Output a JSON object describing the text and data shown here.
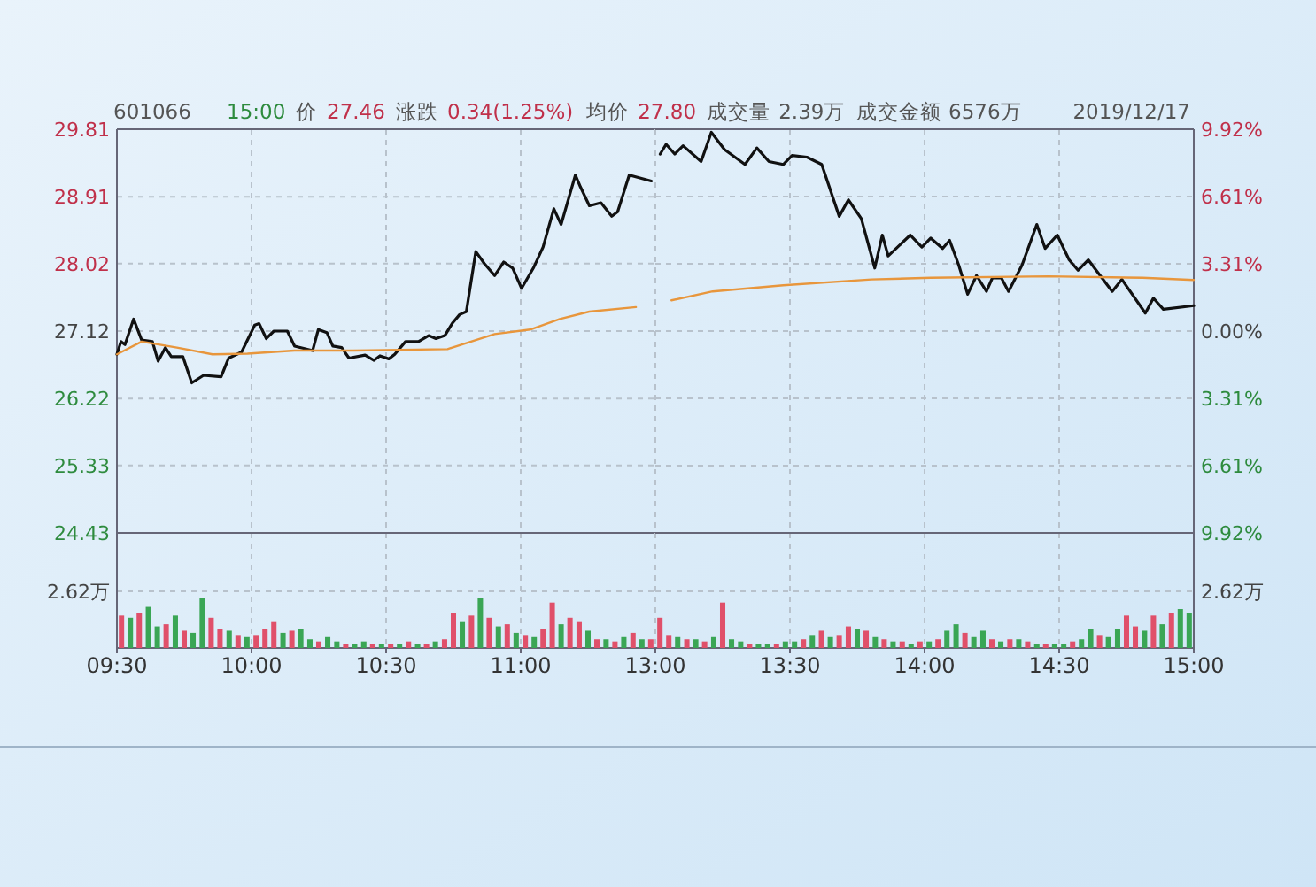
{
  "chart_data": [
    {
      "type": "line",
      "title": "601066",
      "annotations": [
        "15:00",
        "价",
        "27.46",
        "涨跌",
        "0.34(1.25%)",
        "均价",
        "27.80",
        "成交量",
        "2.39万",
        "成交金额",
        "6576万",
        "2019/12/17"
      ],
      "series": [
        {
          "color": "#111111",
          "x": [
            9.5,
            9.515,
            9.53,
            9.562,
            9.592,
            9.632,
            9.653,
            9.68,
            9.702,
            9.745,
            9.778,
            9.822,
            9.887,
            9.915,
            9.963,
            10.012,
            10.028,
            10.055,
            10.083,
            10.133,
            10.16,
            10.227,
            10.248,
            10.28,
            10.302,
            10.335,
            10.362,
            10.422,
            10.455,
            10.477,
            10.51,
            10.532,
            10.572,
            10.62,
            10.658,
            10.685,
            10.718,
            10.747,
            10.773,
            10.798,
            10.833,
            10.865,
            10.903,
            10.937,
            10.97,
            11.003,
            11.047,
            11.083,
            11.123,
            11.15,
            11.203,
            11.222,
            11.255,
            11.298,
            11.338,
            11.36,
            11.403,
            11.485
          ],
          "values": [
            26.81,
            26.98,
            26.94,
            27.28,
            27.0,
            26.98,
            26.72,
            26.9,
            26.78,
            26.78,
            26.43,
            26.53,
            26.51,
            26.76,
            26.84,
            27.2,
            27.22,
            27.02,
            27.12,
            27.12,
            26.92,
            26.86,
            27.14,
            27.1,
            26.92,
            26.9,
            26.76,
            26.8,
            26.73,
            26.79,
            26.75,
            26.81,
            26.98,
            26.98,
            27.06,
            27.02,
            27.06,
            27.23,
            27.34,
            27.38,
            28.18,
            28.02,
            27.86,
            28.04,
            27.96,
            27.69,
            27.96,
            28.24,
            28.75,
            28.54,
            29.2,
            29.04,
            28.79,
            28.83,
            28.65,
            28.71,
            29.2,
            29.12
          ]
        },
        {
          "color": "#e8963c",
          "x": [
            9.5,
            9.592,
            9.723,
            9.855,
            9.985,
            10.16,
            10.378,
            10.728,
            10.903,
            11.035,
            11.145,
            11.255,
            11.428
          ],
          "values": [
            26.81,
            26.98,
            26.9,
            26.81,
            26.82,
            26.86,
            26.86,
            26.88,
            27.08,
            27.14,
            27.28,
            27.38,
            27.44
          ]
        }
      ],
      "xlim": [
        9.5,
        11.5
      ],
      "xticks": [
        9.5,
        10,
        10.5,
        11,
        11.5
      ],
      "ylim": [
        24.43,
        29.81
      ],
      "yticks": [
        24.43,
        25.33,
        26.22,
        27.12,
        28.02,
        28.91,
        29.81
      ],
      "grid": true,
      "tick_labels": "y",
      "line_style": "solid"
    },
    {
      "type": "line",
      "series": [
        {
          "color": "#111111",
          "x": [
            13.018,
            13.04,
            13.072,
            13.103,
            13.17,
            13.208,
            13.257,
            13.333,
            13.377,
            13.422,
            13.475,
            13.508,
            13.563,
            13.618,
            13.683,
            13.717,
            13.765,
            13.815,
            13.843,
            13.865,
            13.947,
            13.99,
            14.023,
            14.067,
            14.093,
            14.127,
            14.16,
            14.193,
            14.23,
            14.252,
            14.285,
            14.312,
            14.362,
            14.417,
            14.448,
            14.493,
            14.537,
            14.57,
            14.608,
            14.697,
            14.733,
            14.82,
            14.85,
            14.887,
            15
          ],
          "axis": "y2",
          "values": [
            8.7,
            9.18,
            8.7,
            9.11,
            8.33,
            9.77,
            8.92,
            8.19,
            9.0,
            8.33,
            8.19,
            8.63,
            8.55,
            8.19,
            5.64,
            6.45,
            5.53,
            3.1,
            4.72,
            3.69,
            4.72,
            4.13,
            4.57,
            4.06,
            4.46,
            3.24,
            1.81,
            2.73,
            1.95,
            2.62,
            2.62,
            1.95,
            3.24,
            5.24,
            4.06,
            4.72,
            3.5,
            2.99,
            3.5,
            1.95,
            2.54,
            0.88,
            1.62,
            1.07,
            1.25
          ]
        },
        {
          "color": "#e8963c",
          "x": [
            13.06,
            13.213,
            13.475,
            13.803,
            14.023,
            14.46,
            14.81,
            15
          ],
          "axis": "y2",
          "values": [
            1.51,
            1.95,
            2.25,
            2.54,
            2.62,
            2.69,
            2.62,
            2.51
          ]
        }
      ],
      "xlim": [
        13,
        15
      ],
      "xticks": [
        13,
        13.5,
        14,
        14.5,
        15
      ],
      "y2lim": [
        -9.92,
        9.92
      ],
      "y2ticks": [
        {
          "value": -9.92,
          "label": "9.92%"
        },
        {
          "value": -6.61,
          "label": "6.61%"
        },
        {
          "value": -3.31,
          "label": "3.31%"
        },
        {
          "value": 0,
          "label": "0.00%"
        },
        {
          "value": 3.31,
          "label": "3.31%"
        },
        {
          "value": 6.61,
          "label": "6.61%"
        },
        {
          "value": 9.92,
          "label": "9.92%"
        }
      ],
      "grid": true,
      "tick_labels": "y",
      "line_style": "solid"
    },
    {
      "type": "bar",
      "x": [
        9.517,
        9.55,
        9.583,
        9.617,
        9.65,
        9.683,
        9.717,
        9.75,
        9.783,
        9.817,
        9.85,
        9.883,
        9.917,
        9.95,
        9.983,
        10.017,
        10.05,
        10.083,
        10.117,
        10.15,
        10.183,
        10.217,
        10.25,
        10.283,
        10.317,
        10.35,
        10.383,
        10.417,
        10.45,
        10.483,
        10.517,
        10.55,
        10.583,
        10.617,
        10.65,
        10.683,
        10.717,
        10.75,
        10.783,
        10.817,
        10.85,
        10.883,
        10.917,
        10.95,
        10.983,
        11.017,
        11.05,
        11.083,
        11.117,
        11.15,
        11.183,
        11.217,
        11.25,
        11.283,
        11.317,
        11.35,
        11.383,
        11.417,
        11.45,
        11.483
      ],
      "values": [
        1.5,
        1.4,
        1.6,
        1.9,
        1.0,
        1.1,
        1.5,
        0.8,
        0.7,
        2.3,
        1.4,
        0.9,
        0.8,
        0.6,
        0.5,
        0.6,
        0.9,
        1.2,
        0.7,
        0.8,
        0.9,
        0.4,
        0.3,
        0.5,
        0.3,
        0.2,
        0.2,
        0.3,
        0.2,
        0.2,
        0.2,
        0.2,
        0.3,
        0.2,
        0.2,
        0.3,
        0.4,
        1.6,
        1.2,
        1.5,
        2.3,
        1.4,
        1.0,
        1.1,
        0.7,
        0.6,
        0.5,
        0.9,
        2.1,
        1.1,
        1.4,
        1.2,
        0.8,
        0.4,
        0.4,
        0.3,
        0.5,
        0.7,
        0.4,
        0.4
      ],
      "colors": [
        "#e0506a",
        "#3aa655",
        "#e0506a",
        "#3aa655",
        "#3aa655",
        "#e0506a",
        "#3aa655",
        "#e0506a",
        "#3aa655",
        "#3aa655",
        "#e0506a",
        "#e0506a",
        "#3aa655",
        "#e0506a",
        "#3aa655",
        "#e0506a",
        "#e0506a",
        "#e0506a",
        "#3aa655",
        "#e0506a",
        "#3aa655",
        "#3aa655",
        "#e0506a",
        "#3aa655",
        "#3aa655",
        "#e0506a",
        "#3aa655",
        "#3aa655",
        "#e0506a",
        "#3aa655",
        "#e0506a",
        "#3aa655",
        "#e0506a",
        "#3aa655",
        "#e0506a",
        "#3aa655",
        "#e0506a",
        "#e0506a",
        "#3aa655",
        "#e0506a",
        "#3aa655",
        "#e0506a",
        "#3aa655",
        "#e0506a",
        "#3aa655",
        "#e0506a",
        "#3aa655",
        "#e0506a",
        "#e0506a",
        "#3aa655",
        "#e0506a",
        "#e0506a",
        "#3aa655",
        "#e0506a",
        "#3aa655",
        "#e0506a",
        "#3aa655",
        "#e0506a",
        "#3aa655",
        "#e0506a"
      ],
      "xlim": [
        9.5,
        11.5
      ],
      "xticks": [
        {
          "value": 9.5,
          "label": "09:30"
        },
        {
          "value": 10,
          "label": "10:00"
        },
        {
          "value": 10.5,
          "label": "10:30"
        },
        {
          "value": 11,
          "label": "11:00"
        },
        {
          "value": 11.5,
          "label": null
        }
      ],
      "ylim": [
        0,
        5.32
      ],
      "yticks": [
        {
          "value": 2.62,
          "label": "2.62万"
        }
      ],
      "grid": true
    },
    {
      "type": "bar",
      "x": [
        13.017,
        13.05,
        13.083,
        13.117,
        13.15,
        13.183,
        13.217,
        13.25,
        13.283,
        13.317,
        13.35,
        13.383,
        13.417,
        13.45,
        13.483,
        13.517,
        13.55,
        13.583,
        13.617,
        13.65,
        13.683,
        13.717,
        13.75,
        13.783,
        13.817,
        13.85,
        13.883,
        13.917,
        13.95,
        13.983,
        14.017,
        14.05,
        14.083,
        14.117,
        14.15,
        14.183,
        14.217,
        14.25,
        14.283,
        14.317,
        14.35,
        14.383,
        14.417,
        14.45,
        14.483,
        14.517,
        14.55,
        14.583,
        14.617,
        14.65,
        14.683,
        14.717,
        14.75,
        14.783,
        14.817,
        14.85,
        14.883,
        14.917,
        14.95,
        14.983
      ],
      "series": [
        {
          "axis": "y2",
          "values": [
            1.4,
            0.6,
            0.5,
            0.4,
            0.4,
            0.3,
            0.5,
            2.1,
            0.4,
            0.3,
            0.2,
            0.2,
            0.2,
            0.2,
            0.3,
            0.3,
            0.4,
            0.6,
            0.8,
            0.5,
            0.6,
            1.0,
            0.9,
            0.8,
            0.5,
            0.4,
            0.3,
            0.3,
            0.2,
            0.3,
            0.3,
            0.4,
            0.8,
            1.1,
            0.7,
            0.5,
            0.8,
            0.4,
            0.3,
            0.4,
            0.4,
            0.3,
            0.2,
            0.2,
            0.2,
            0.2,
            0.3,
            0.4,
            0.9,
            0.6,
            0.5,
            0.9,
            1.5,
            1.0,
            0.8,
            1.5,
            1.1,
            1.6,
            1.8,
            1.6
          ],
          "colors": [
            "#e0506a",
            "#e0506a",
            "#3aa655",
            "#e0506a",
            "#3aa655",
            "#e0506a",
            "#3aa655",
            "#e0506a",
            "#3aa655",
            "#3aa655",
            "#e0506a",
            "#3aa655",
            "#3aa655",
            "#e0506a",
            "#3aa655",
            "#3aa655",
            "#e0506a",
            "#3aa655",
            "#e0506a",
            "#3aa655",
            "#e0506a",
            "#e0506a",
            "#3aa655",
            "#e0506a",
            "#3aa655",
            "#e0506a",
            "#3aa655",
            "#e0506a",
            "#3aa655",
            "#e0506a",
            "#3aa655",
            "#e0506a",
            "#3aa655",
            "#3aa655",
            "#e0506a",
            "#3aa655",
            "#3aa655",
            "#e0506a",
            "#3aa655",
            "#e0506a",
            "#3aa655",
            "#e0506a",
            "#3aa655",
            "#e0506a",
            "#3aa655",
            "#3aa655",
            "#e0506a",
            "#3aa655",
            "#3aa655",
            "#e0506a",
            "#3aa655",
            "#3aa655",
            "#e0506a",
            "#e0506a",
            "#3aa655",
            "#e0506a",
            "#3aa655",
            "#e0506a",
            "#3aa655",
            "#3aa655"
          ]
        }
      ],
      "xlim": [
        13,
        15
      ],
      "xticks": [
        {
          "value": 13,
          "label": "13:00"
        },
        {
          "value": 13.5,
          "label": "13:30"
        },
        {
          "value": 14,
          "label": "14:00"
        },
        {
          "value": 14.5,
          "label": "14:30"
        },
        {
          "value": 15,
          "label": "15:00"
        }
      ],
      "y2lim": [
        0,
        5.32
      ],
      "y2ticks": [
        {
          "value": 2.62,
          "label": "2.62万"
        }
      ],
      "grid": true
    }
  ]
}
